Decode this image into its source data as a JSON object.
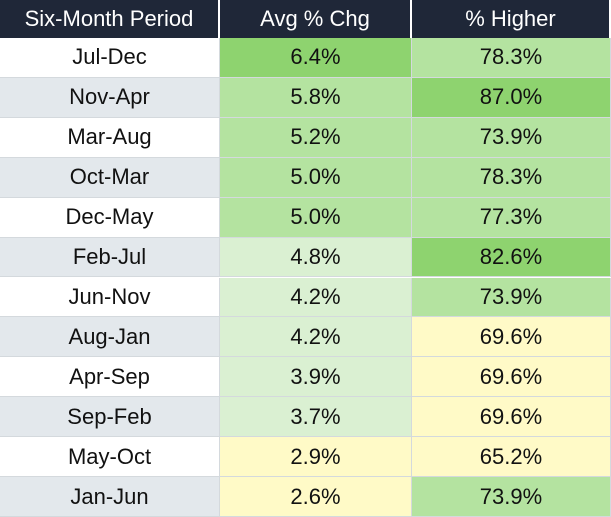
{
  "table": {
    "header": [
      "Six-Month Period",
      "Avg % Chg",
      "% Higher"
    ],
    "rows": [
      [
        "Jul-Dec",
        "6.4%",
        "78.3%"
      ],
      [
        "Nov-Apr",
        "5.8%",
        "87.0%"
      ],
      [
        "Mar-Aug",
        "5.2%",
        "73.9%"
      ],
      [
        "Oct-Mar",
        "5.0%",
        "78.3%"
      ],
      [
        "Dec-May",
        "5.0%",
        "77.3%"
      ],
      [
        "Feb-Jul",
        "4.8%",
        "82.6%"
      ],
      [
        "Jun-Nov",
        "4.2%",
        "73.9%"
      ],
      [
        "Aug-Jan",
        "4.2%",
        "69.6%"
      ],
      [
        "Apr-Sep",
        "3.9%",
        "69.6%"
      ],
      [
        "Sep-Feb",
        "3.7%",
        "69.6%"
      ],
      [
        "May-Oct",
        "2.9%",
        "65.2%"
      ],
      [
        "Jan-Jun",
        "2.6%",
        "73.9%"
      ]
    ]
  }
}
